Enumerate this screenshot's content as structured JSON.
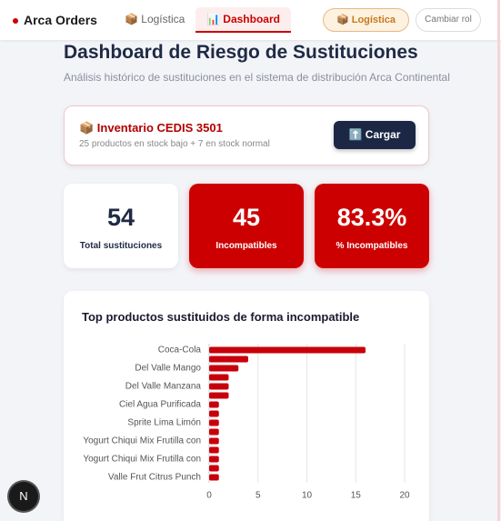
{
  "nav": {
    "brand": "Arca Orders",
    "tabs": [
      "📦 Logística",
      "📊 Dashboard"
    ],
    "role_button": "📦 Logística",
    "switch_role": "Cambiar rol"
  },
  "header": {
    "title": "Dashboard de Riesgo de Sustituciones",
    "subtitle": "Análisis histórico de sustituciones en el sistema de distribución Arca Continental"
  },
  "inventory": {
    "title": "📦 Inventario CEDIS 3501",
    "summary": "25 productos en stock bajo + 7 en stock normal",
    "button": "⬆️ Cargar"
  },
  "stats": [
    {
      "value": 54,
      "label": "Total sustituciones"
    },
    {
      "value": 45,
      "label": "Incompatibles"
    },
    {
      "value": "83.3%",
      "label": "% Incompatibles"
    }
  ],
  "chart_data": {
    "type": "bar",
    "orientation": "horizontal",
    "title": "Top productos sustituidos de forma incompatible",
    "categories": [
      "Coca-Cola",
      null,
      "Del Valle Mango",
      null,
      "Del Valle Manzana",
      null,
      "Ciel Agua Purificada",
      null,
      "Sprite Lima Limón",
      null,
      "Yogurt Chiqui Mix Frutilla con",
      null,
      "Yogurt Chiqui Mix Frutilla con",
      null,
      "Valle Frut Citrus Punch"
    ],
    "values": [
      16,
      4,
      3,
      2,
      2,
      2,
      1,
      1,
      1,
      1,
      1,
      1,
      1,
      1,
      1
    ],
    "color": "#c8000b",
    "xlim": [
      0,
      20
    ],
    "xticks": [
      0,
      5,
      10,
      15,
      20
    ],
    "grid": true
  },
  "badge": "N"
}
